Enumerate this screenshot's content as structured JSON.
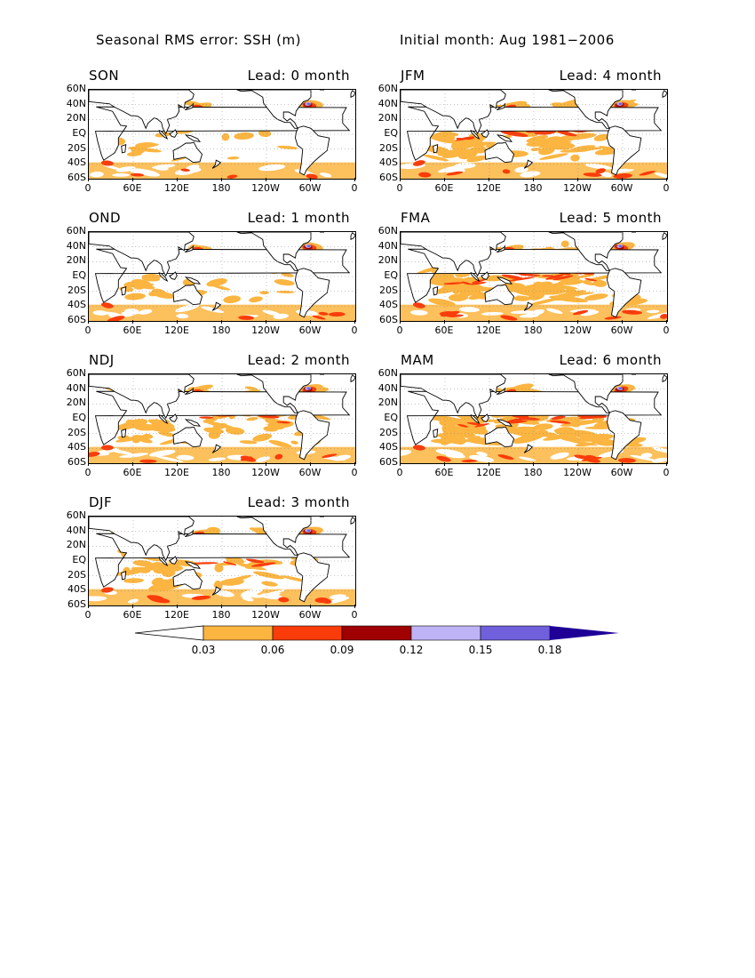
{
  "header": {
    "title": "Seasonal RMS error: SSH (m)",
    "period": "Initial month: Aug 1981−2006"
  },
  "axes": {
    "lat_ticks": [
      "60N",
      "40N",
      "20N",
      "EQ",
      "20S",
      "40S",
      "60S"
    ],
    "lon_ticks": [
      "0",
      "60E",
      "120E",
      "180",
      "120W",
      "60W",
      "0"
    ]
  },
  "panels": [
    {
      "season": "SON",
      "lead": "Lead: 0 month",
      "level": 0
    },
    {
      "season": "OND",
      "lead": "Lead: 1 month",
      "level": 1
    },
    {
      "season": "NDJ",
      "lead": "Lead: 2 month",
      "level": 2
    },
    {
      "season": "DJF",
      "lead": "Lead: 3 month",
      "level": 2
    },
    {
      "season": "JFM",
      "lead": "Lead: 4 month",
      "level": 3
    },
    {
      "season": "FMA",
      "lead": "Lead: 5 month",
      "level": 4
    },
    {
      "season": "MAM",
      "lead": "Lead: 6 month",
      "level": 4
    }
  ],
  "colorbar": {
    "labels": [
      "0.03",
      "0.06",
      "0.09",
      "0.12",
      "0.15",
      "0.18"
    ],
    "colors": [
      "#ffffff",
      "#fbb540",
      "#fa3c0a",
      "#a00000",
      "#beb4f5",
      "#7060dc",
      "#1e0096"
    ]
  }
}
